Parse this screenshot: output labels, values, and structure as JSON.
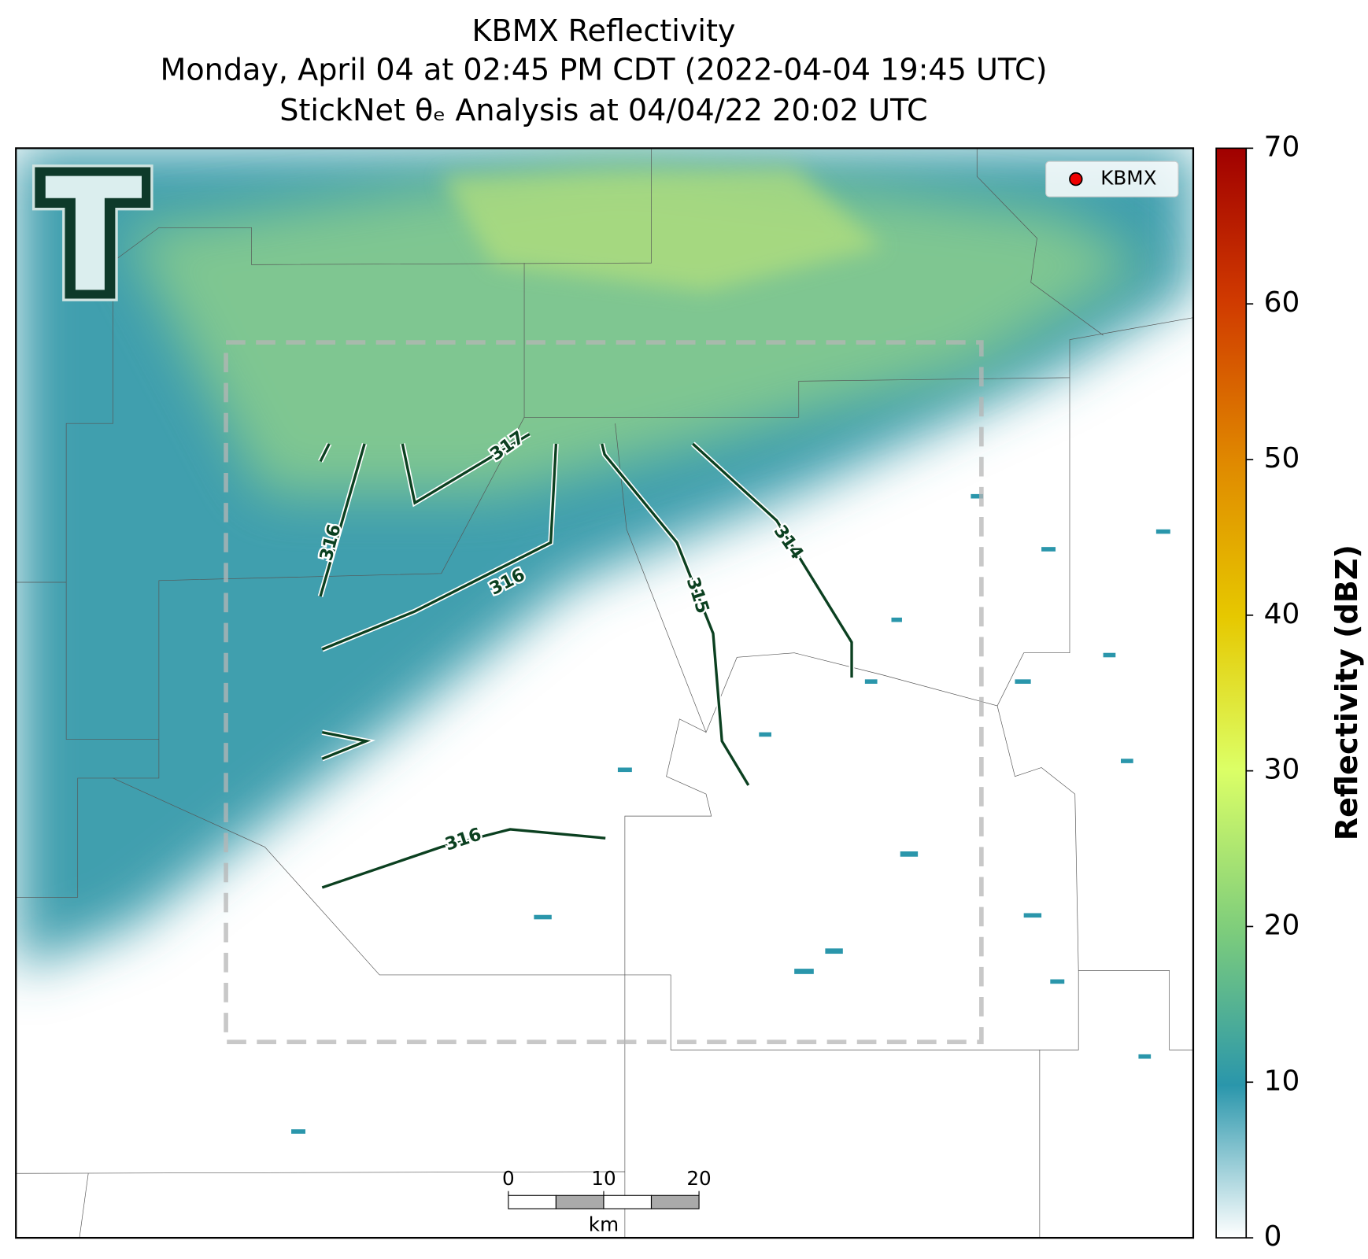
{
  "title": [
    "KBMX Reflectivity",
    "Monday, April 04 at 02:45 PM CDT (2022-04-04 19:45 UTC)",
    "StickNet θₑ Analysis at 04/04/22 20:02 UTC"
  ],
  "legend": "KBMX",
  "colorbar": {
    "label": "Reflectivity (dBZ)",
    "lim": [
      0,
      70
    ],
    "ticks": [
      0,
      10,
      20,
      30,
      40,
      50,
      60,
      70
    ]
  },
  "contours": [
    {
      "level": 316
    },
    {
      "level": 317
    },
    {
      "level": 316
    },
    {
      "level": 315
    },
    {
      "level": 314
    },
    {
      "level": 316
    }
  ],
  "scale_bar": {
    "unit": "km",
    "lim": [
      0,
      20
    ],
    "ticks": [
      0,
      10,
      20
    ]
  }
}
